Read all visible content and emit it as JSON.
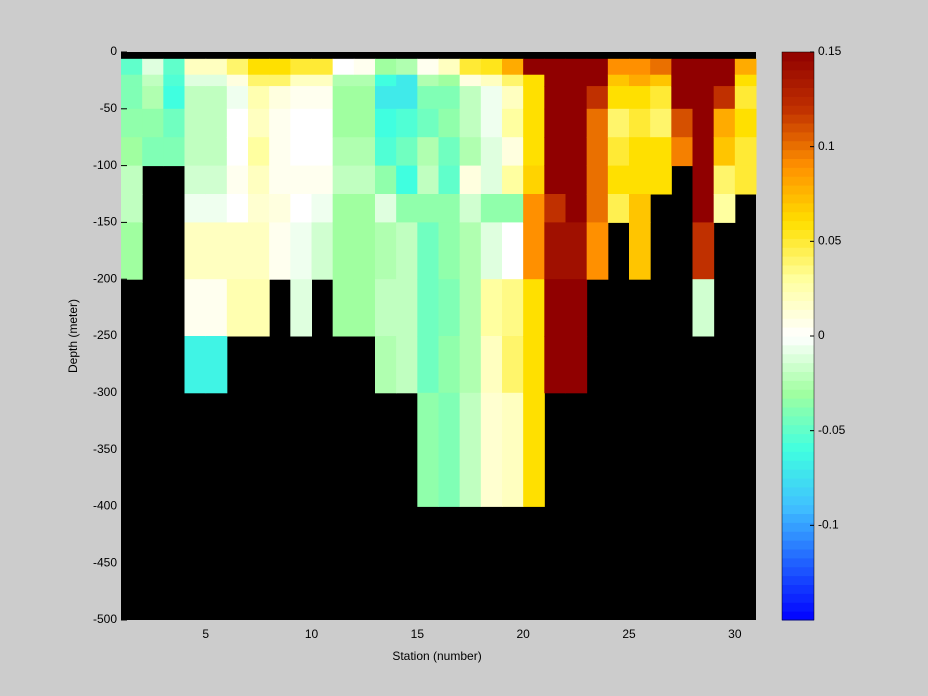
{
  "chart_data": {
    "type": "heatmap",
    "xlabel": "Station (number)",
    "ylabel": "Depth (meter)",
    "x": [
      1,
      2,
      3,
      4,
      5,
      6,
      7,
      8,
      9,
      10,
      11,
      12,
      13,
      14,
      15,
      16,
      17,
      18,
      19,
      20,
      21,
      22,
      23,
      24,
      25,
      26,
      27,
      28,
      29,
      30,
      31
    ],
    "y": [
      -6,
      -20,
      -30,
      -50,
      -75,
      -100,
      -125,
      -150,
      -200,
      -250,
      -300,
      -400,
      -500
    ],
    "values": [
      [
        -0.05,
        -0.04,
        -0.04,
        -0.035,
        -0.03,
        -0.02,
        -0.02,
        -0.03,
        null,
        null,
        null,
        null
      ],
      [
        -0.01,
        -0.02,
        -0.025,
        -0.035,
        -0.04,
        null,
        null,
        null,
        null,
        null,
        null,
        null
      ],
      [
        -0.05,
        -0.055,
        -0.06,
        -0.045,
        -0.04,
        null,
        null,
        null,
        null,
        null,
        null,
        null
      ],
      [
        0.02,
        -0.01,
        -0.02,
        -0.02,
        -0.02,
        -0.015,
        -0.005,
        0.02,
        0.005,
        -0.065,
        null,
        null
      ],
      [
        0.02,
        -0.01,
        -0.02,
        -0.02,
        -0.02,
        -0.015,
        -0.005,
        0.02,
        0.005,
        -0.065,
        null,
        null
      ],
      [
        0.04,
        0.01,
        -0.005,
        0.0,
        0.0,
        0.005,
        0.0,
        0.02,
        0.025,
        null,
        null,
        null
      ],
      [
        0.06,
        0.04,
        0.025,
        0.02,
        0.03,
        0.02,
        0.015,
        0.02,
        0.025,
        null,
        null,
        null
      ],
      [
        0.06,
        0.04,
        0.01,
        0.005,
        0.005,
        0.005,
        0.01,
        0.005,
        null,
        null,
        null,
        null
      ],
      [
        0.05,
        0.02,
        0.005,
        0.0,
        0.0,
        0.005,
        0.0,
        -0.005,
        -0.01,
        null,
        null,
        null
      ],
      [
        0.05,
        0.02,
        0.005,
        0.0,
        0.0,
        0.005,
        -0.005,
        -0.015,
        null,
        null,
        null,
        null
      ],
      [
        0.0,
        -0.025,
        -0.03,
        -0.03,
        -0.025,
        -0.02,
        -0.03,
        -0.03,
        -0.03,
        null,
        null,
        null
      ],
      [
        0.005,
        -0.025,
        -0.03,
        -0.03,
        -0.025,
        -0.02,
        -0.03,
        -0.03,
        -0.03,
        null,
        null,
        null
      ],
      [
        -0.03,
        -0.06,
        -0.07,
        -0.06,
        -0.055,
        -0.035,
        -0.01,
        -0.025,
        -0.02,
        -0.025,
        null,
        null
      ],
      [
        -0.025,
        -0.07,
        -0.07,
        -0.055,
        -0.045,
        -0.06,
        -0.035,
        -0.02,
        -0.02,
        -0.02,
        null,
        null
      ],
      [
        0.005,
        -0.025,
        -0.04,
        -0.045,
        -0.025,
        -0.02,
        -0.035,
        -0.045,
        -0.045,
        -0.045,
        -0.035,
        null
      ],
      [
        0.02,
        -0.03,
        -0.04,
        -0.035,
        -0.045,
        -0.05,
        -0.035,
        -0.035,
        -0.04,
        -0.035,
        -0.04,
        null
      ],
      [
        0.05,
        0.01,
        -0.02,
        -0.02,
        -0.025,
        0.01,
        -0.015,
        -0.025,
        -0.025,
        -0.025,
        -0.02,
        null
      ],
      [
        0.055,
        0.02,
        -0.005,
        -0.005,
        -0.01,
        -0.01,
        -0.035,
        -0.01,
        0.03,
        0.02,
        0.015,
        null
      ],
      [
        0.08,
        0.04,
        0.02,
        0.03,
        0.01,
        0.03,
        -0.035,
        0.0,
        0.035,
        0.04,
        0.02,
        null
      ],
      [
        0.15,
        0.06,
        0.06,
        0.06,
        0.06,
        0.065,
        0.09,
        0.09,
        0.06,
        0.06,
        0.06,
        null
      ],
      [
        0.15,
        0.15,
        0.15,
        0.15,
        0.15,
        0.15,
        0.12,
        0.14,
        0.15,
        0.15,
        null,
        null
      ],
      [
        0.15,
        0.15,
        0.15,
        0.15,
        0.15,
        0.15,
        0.15,
        0.14,
        0.15,
        0.15,
        null,
        null
      ],
      [
        0.15,
        0.15,
        0.12,
        0.1,
        0.1,
        0.1,
        0.1,
        0.09,
        null,
        null,
        null,
        null
      ],
      [
        0.09,
        0.07,
        0.06,
        0.04,
        0.05,
        0.06,
        0.045,
        null,
        null,
        null,
        null,
        null
      ],
      [
        0.09,
        0.08,
        0.06,
        0.05,
        0.06,
        0.06,
        0.07,
        0.07,
        null,
        null,
        null,
        null
      ],
      [
        0.1,
        0.07,
        0.05,
        0.04,
        0.06,
        0.06,
        null,
        null,
        null,
        null,
        null,
        null
      ],
      [
        0.15,
        0.15,
        0.15,
        0.11,
        0.095,
        null,
        null,
        null,
        null,
        null,
        null,
        null
      ],
      [
        0.15,
        0.15,
        0.15,
        0.15,
        0.15,
        0.15,
        0.15,
        0.12,
        -0.015,
        null,
        null,
        null
      ],
      [
        0.15,
        0.15,
        0.12,
        0.08,
        0.07,
        0.04,
        0.03,
        null,
        null,
        null,
        null,
        null
      ],
      [
        0.08,
        0.06,
        0.05,
        0.06,
        0.05,
        0.05,
        null,
        null,
        null,
        null,
        null,
        null
      ]
    ],
    "xlim": [
      1,
      31
    ],
    "xticks": [
      5,
      10,
      15,
      20,
      25,
      30
    ],
    "ylim": [
      -500,
      0
    ],
    "yticks": [
      -500,
      -450,
      -400,
      -350,
      -300,
      -250,
      -200,
      -150,
      -100,
      -50,
      0
    ],
    "clim": [
      -0.15,
      0.15
    ],
    "cticks": [
      -0.1,
      -0.05,
      0,
      0.05,
      0.1,
      0.15
    ],
    "colors": [
      "#0000ff",
      "#2060ff",
      "#40c0ff",
      "#40ffe0",
      "#a0ffa0",
      "#ffffff",
      "#ffffa0",
      "#ffe000",
      "#ff9000",
      "#c03000",
      "#900000"
    ],
    "background": "#000000"
  }
}
